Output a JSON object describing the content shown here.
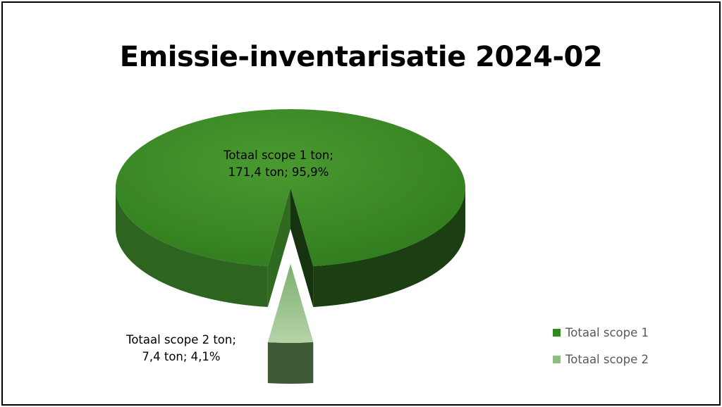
{
  "chart_data": {
    "type": "pie",
    "title": "Emissie-inventarisatie 2024-02",
    "unit": "ton",
    "legend_position": "bottom-right",
    "three_d": true,
    "slices": [
      {
        "name": "Totaal scope 1",
        "category": "Totaal scope 1 ton",
        "value": 171.4,
        "percent": 95.9,
        "label_line1": "Totaal scope 1 ton;",
        "label_line2": "171,4 ton;  95,9%",
        "color": "#3a8a24"
      },
      {
        "name": "Totaal scope 2",
        "category": "Totaal scope 2 ton",
        "value": 7.4,
        "percent": 4.1,
        "label_line1": "Totaal scope 2 ton;",
        "label_line2": "7,4 ton;  4,1%",
        "color": "#8fbf80"
      }
    ],
    "legend": [
      "Totaal scope 1",
      "Totaal scope 2"
    ]
  },
  "colors": {
    "scope1_top": "#3a8a24",
    "scope1_side_dark": "#1a3d10",
    "scope1_side_light": "#2f6a20",
    "scope2_top": "#9cc48f",
    "scope2_side": "#3e5a36",
    "legend_scope1": "#2e8b1e",
    "legend_scope2": "#8fbf80",
    "legend_text": "#595959"
  }
}
